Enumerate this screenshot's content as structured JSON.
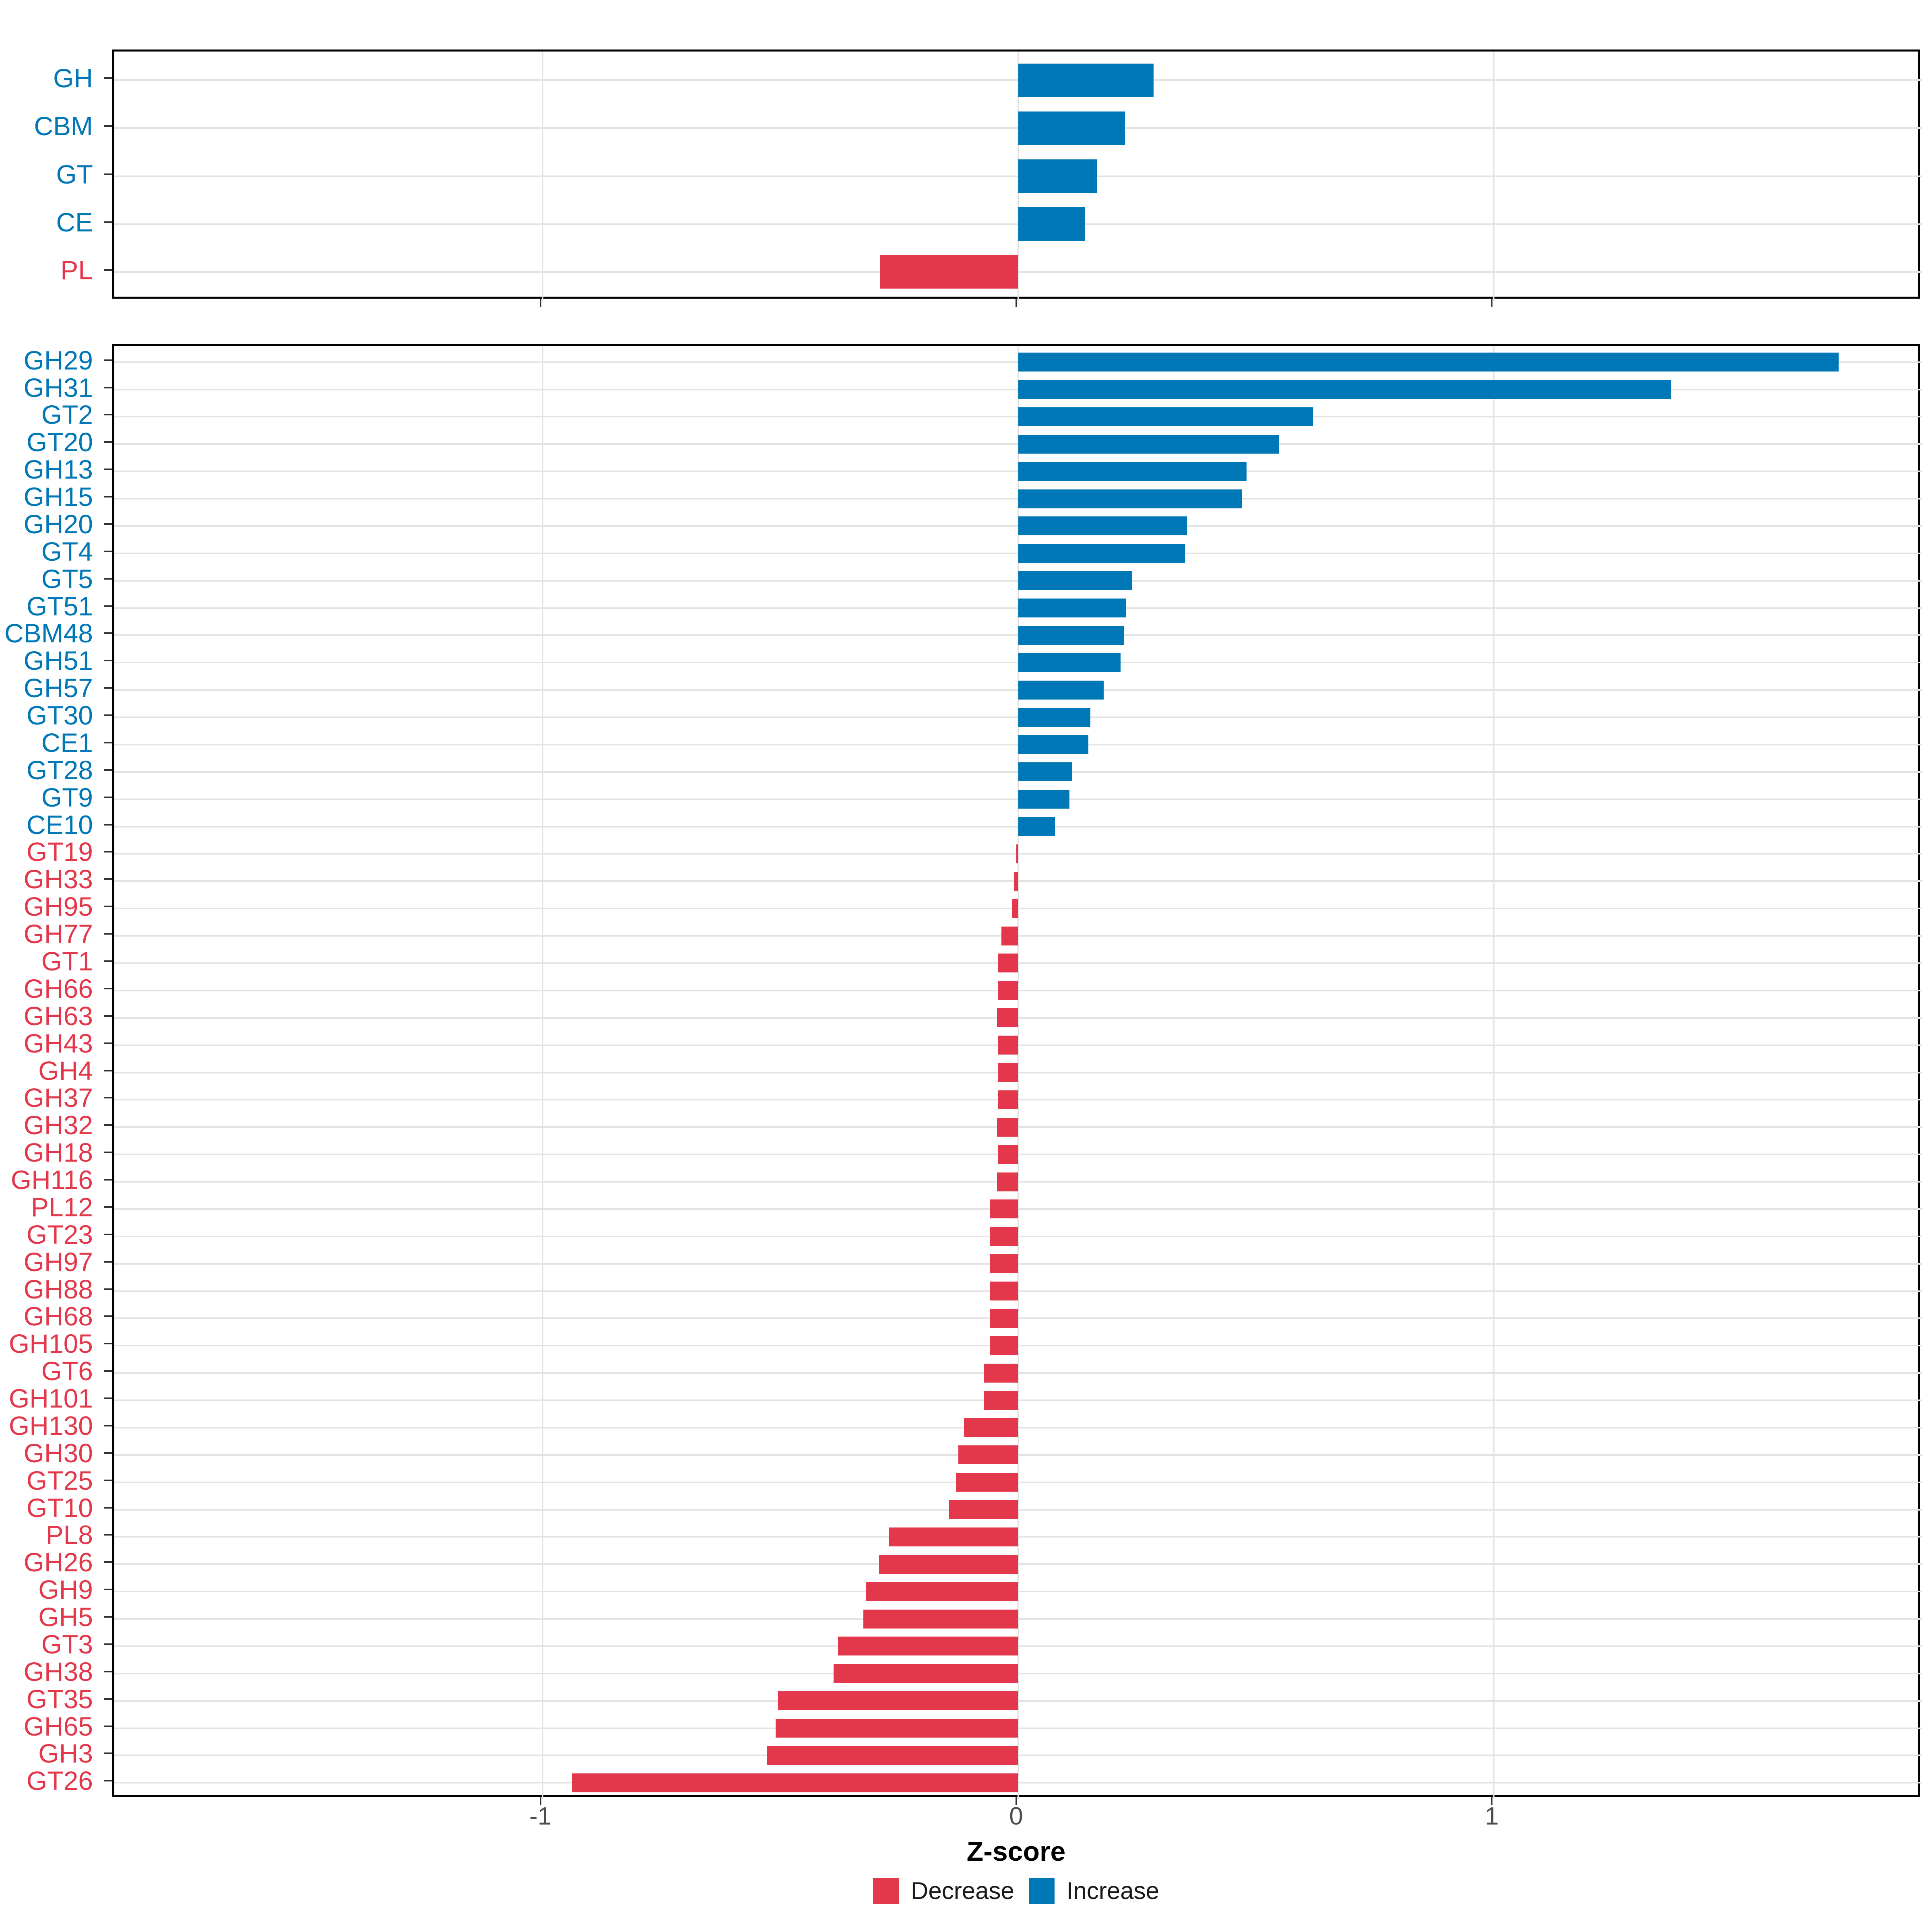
{
  "colors": {
    "increase": "#0077B6",
    "decrease": "#E3384B",
    "grid": "#E3E3E3",
    "panel_border": "#000000",
    "tick_mark": "#333333",
    "x_tick_text": "#4D4D4D"
  },
  "axis": {
    "xlabel": "Z-score",
    "xticks": [
      -1,
      0,
      1
    ],
    "xtick_labels": [
      "-1",
      "0",
      "1"
    ],
    "xlim": [
      -1.9,
      1.9
    ]
  },
  "legend": {
    "items": [
      {
        "label": "Decrease",
        "color": "#E3384B"
      },
      {
        "label": "Increase",
        "color": "#0077B6"
      }
    ]
  },
  "chart_data": [
    {
      "type": "bar",
      "orientation": "horizontal",
      "panel": "top",
      "title": "",
      "xlabel": "",
      "ylabel": "",
      "xlim": [
        -1.9,
        1.9
      ],
      "grid": true,
      "legend_position": "bottom",
      "categories": [
        "GH",
        "CBM",
        "GT",
        "CE",
        "PL"
      ],
      "values": [
        0.285,
        0.225,
        0.165,
        0.14,
        -0.29
      ]
    },
    {
      "type": "bar",
      "orientation": "horizontal",
      "panel": "bottom",
      "title": "",
      "xlabel": "Z-score",
      "ylabel": "",
      "xlim": [
        -1.9,
        1.9
      ],
      "grid": true,
      "legend_position": "bottom",
      "categories": [
        "GH29",
        "GH31",
        "GT2",
        "GT20",
        "GH13",
        "GH15",
        "GH20",
        "GT4",
        "GT5",
        "GT51",
        "CBM48",
        "GH51",
        "GH57",
        "GT30",
        "CE1",
        "GT28",
        "GT9",
        "CE10",
        "GT19",
        "GH33",
        "GH95",
        "GH77",
        "GT1",
        "GH66",
        "GH63",
        "GH43",
        "GH4",
        "GH37",
        "GH32",
        "GH18",
        "GH116",
        "PL12",
        "GT23",
        "GH97",
        "GH88",
        "GH68",
        "GH105",
        "GT6",
        "GH101",
        "GH130",
        "GH30",
        "GT25",
        "GT10",
        "PL8",
        "GH26",
        "GH9",
        "GH5",
        "GT3",
        "GH38",
        "GT35",
        "GH65",
        "GH3",
        "GT26"
      ],
      "values": [
        1.725,
        1.372,
        0.62,
        0.549,
        0.48,
        0.47,
        0.355,
        0.351,
        0.24,
        0.227,
        0.223,
        0.215,
        0.18,
        0.152,
        0.148,
        0.113,
        0.108,
        0.077,
        -0.004,
        -0.009,
        -0.013,
        -0.035,
        -0.043,
        -0.043,
        -0.044,
        -0.043,
        -0.043,
        -0.043,
        -0.044,
        -0.043,
        -0.044,
        -0.06,
        -0.06,
        -0.06,
        -0.06,
        -0.06,
        -0.06,
        -0.072,
        -0.072,
        -0.114,
        -0.126,
        -0.131,
        -0.145,
        -0.272,
        -0.292,
        -0.32,
        -0.325,
        -0.379,
        -0.388,
        -0.505,
        -0.51,
        -0.528,
        -0.938
      ]
    }
  ]
}
